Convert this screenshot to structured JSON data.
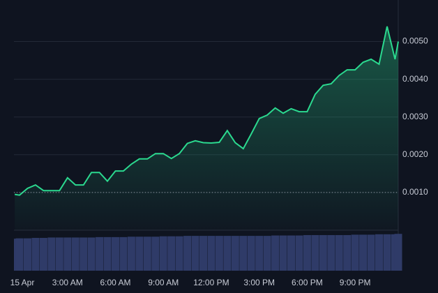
{
  "chart_data": {
    "type": "line",
    "x": [
      -0.3,
      0,
      0.5,
      1,
      1.5,
      2,
      2.5,
      3,
      3.5,
      4,
      4.5,
      5,
      5.5,
      6,
      6.5,
      7,
      7.5,
      8,
      8.5,
      9,
      9.5,
      10,
      10.5,
      11,
      11.5,
      12,
      12.5,
      13,
      13.5,
      14,
      14.5,
      15,
      15.5,
      16,
      16.5,
      17,
      17.5,
      18,
      18.5,
      19,
      19.5,
      20,
      20.5,
      21,
      21.5,
      22,
      22.5,
      23,
      23.5,
      23.7
    ],
    "series": [
      {
        "color": "#2bd98f",
        "values": [
          0.00095,
          0.00093,
          0.00111,
          0.0012,
          0.00105,
          0.00105,
          0.00105,
          0.00139,
          0.0012,
          0.0012,
          0.00153,
          0.00153,
          0.0013,
          0.00157,
          0.00157,
          0.00175,
          0.00189,
          0.00189,
          0.00203,
          0.00203,
          0.0019,
          0.00203,
          0.0023,
          0.00237,
          0.00232,
          0.00231,
          0.00233,
          0.00264,
          0.00232,
          0.00216,
          0.00255,
          0.00296,
          0.00305,
          0.00324,
          0.0031,
          0.00322,
          0.00314,
          0.00314,
          0.0036,
          0.00384,
          0.00388,
          0.0041,
          0.00425,
          0.00425,
          0.00445,
          0.00453,
          0.0044,
          0.0054,
          0.00453,
          0.005
        ]
      }
    ],
    "volume": {
      "color": "#2f3b68",
      "values": [
        79,
        80,
        80,
        81,
        81,
        82,
        82,
        82,
        82,
        82,
        82,
        83,
        83,
        83,
        83,
        84,
        84,
        84,
        84,
        85,
        85,
        85,
        86,
        86,
        86,
        86,
        86,
        86,
        86,
        86,
        86,
        86,
        86,
        87,
        87,
        87,
        87,
        88,
        88,
        88,
        88,
        88,
        88,
        89,
        89,
        89,
        90,
        90,
        90,
        91
      ],
      "vlim": [
        0,
        100
      ]
    },
    "baseline": 0.001,
    "xlim": [
      -0.35,
      23.7
    ],
    "xticks": [
      {
        "value": 0,
        "label": "15 Apr"
      },
      {
        "value": 3,
        "label": "3:00 AM"
      },
      {
        "value": 6,
        "label": "6:00 AM"
      },
      {
        "value": 9,
        "label": "9:00 AM"
      },
      {
        "value": 12,
        "label": "12:00 PM"
      },
      {
        "value": 15,
        "label": "3:00 PM"
      },
      {
        "value": 18,
        "label": "6:00 PM"
      },
      {
        "value": 21,
        "label": "9:00 PM"
      }
    ],
    "ylim": [
      0,
      0.0061
    ],
    "yticks": [
      {
        "value": 0.005,
        "label": "0.0050"
      },
      {
        "value": 0.004,
        "label": "0.0040"
      },
      {
        "value": 0.003,
        "label": "0.0030"
      },
      {
        "value": 0.002,
        "label": "0.0020"
      },
      {
        "value": 0.001,
        "label": "0.0010"
      }
    ],
    "grid": true
  }
}
